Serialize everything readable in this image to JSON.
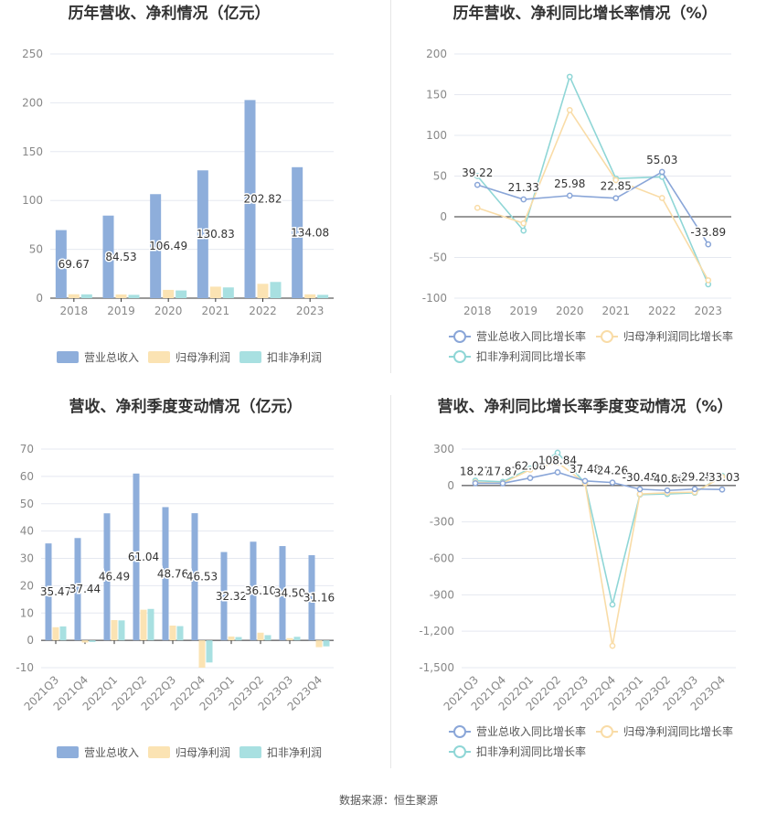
{
  "footer": {
    "source": "数据来源：恒生聚源"
  },
  "colors": {
    "revenue": "#8eaedb",
    "net_profit": "#fbe3b3",
    "deducted_profit": "#a8e0e1",
    "revenue_line": "#8aa6d8",
    "net_line": "#f9dca7",
    "deducted_line": "#8fd6d6",
    "grid": "#e5e8f0",
    "axis": "#333333"
  },
  "chart_data": [
    {
      "type": "bar",
      "title": "历年营收、净利情况（亿元）",
      "categories": [
        "2018",
        "2019",
        "2020",
        "2021",
        "2022",
        "2023"
      ],
      "ylim": [
        0,
        250
      ],
      "yticks": [
        0,
        50,
        100,
        150,
        200,
        250
      ],
      "yticklabels": [
        "0",
        "50",
        "100",
        "150",
        "200",
        "250"
      ],
      "grid": true,
      "legend": "bottom",
      "series": [
        {
          "name": "营业总收入",
          "values": [
            69.67,
            84.53,
            106.49,
            130.83,
            202.82,
            134.08
          ],
          "labels": [
            "69.67",
            "84.53",
            "106.49",
            "130.83",
            "202.82",
            "134.08"
          ]
        },
        {
          "name": "归母净利润",
          "values": [
            4.0,
            3.8,
            8.5,
            11.8,
            14.7,
            3.9
          ]
        },
        {
          "name": "扣非净利润",
          "values": [
            3.9,
            3.4,
            7.9,
            11.0,
            16.6,
            3.4
          ]
        }
      ]
    },
    {
      "type": "line",
      "title": "历年营收、净利同比增长率情况（%）",
      "categories": [
        "2018",
        "2019",
        "2020",
        "2021",
        "2022",
        "2023"
      ],
      "ylim": [
        -100,
        200
      ],
      "yticks": [
        -100,
        -50,
        0,
        50,
        100,
        150,
        200
      ],
      "yticklabels": [
        "-100",
        "-50",
        "0",
        "50",
        "100",
        "150",
        "200"
      ],
      "grid": true,
      "legend": "bottom",
      "series": [
        {
          "name": "营业总收入同比增长率",
          "values": [
            39.22,
            21.33,
            25.98,
            22.85,
            55.03,
            -33.89
          ],
          "labels": [
            "39.22",
            "21.33",
            "25.98",
            "22.85",
            "55.03",
            "-33.89"
          ]
        },
        {
          "name": "归母净利润同比增长率",
          "values": [
            11,
            -8,
            131,
            45,
            23,
            -78
          ]
        },
        {
          "name": "扣非净利润同比增长率",
          "values": [
            50,
            -17,
            172,
            47,
            49,
            -83
          ]
        }
      ]
    },
    {
      "type": "bar",
      "title": "营收、净利季度变动情况（亿元）",
      "categories": [
        "2021Q3",
        "2021Q4",
        "2022Q1",
        "2022Q2",
        "2022Q3",
        "2022Q4",
        "2023Q1",
        "2023Q2",
        "2023Q3",
        "2023Q4"
      ],
      "ylim": [
        -10,
        70
      ],
      "yticks": [
        -10,
        0,
        10,
        20,
        30,
        40,
        50,
        60,
        70
      ],
      "yticklabels": [
        "-10",
        "0",
        "10",
        "20",
        "30",
        "40",
        "50",
        "60",
        "70"
      ],
      "grid": true,
      "legend": "bottom",
      "series": [
        {
          "name": "营业总收入",
          "values": [
            35.47,
            37.44,
            46.49,
            61.04,
            48.76,
            46.53,
            32.32,
            36.1,
            34.5,
            31.16
          ],
          "labels": [
            "35.47",
            "37.44",
            "46.49",
            "61.04",
            "48.76",
            "46.53",
            "32.32",
            "36.10",
            "34.50",
            "31.16"
          ]
        },
        {
          "name": "归母净利润",
          "values": [
            4.8,
            -0.8,
            7.4,
            11.2,
            5.4,
            -10.0,
            1.4,
            2.8,
            0.8,
            -2.5
          ]
        },
        {
          "name": "扣非净利润",
          "values": [
            5.1,
            -0.6,
            7.3,
            11.5,
            5.2,
            -8.1,
            1.2,
            1.9,
            1.3,
            -2.2
          ]
        }
      ]
    },
    {
      "type": "line",
      "title": "营收、净利同比增长率季度变动情况（%）",
      "categories": [
        "2021Q3",
        "2021Q4",
        "2022Q1",
        "2022Q2",
        "2022Q3",
        "2022Q4",
        "2023Q1",
        "2023Q2",
        "2023Q3",
        "2023Q4"
      ],
      "ylim": [
        -1500,
        300
      ],
      "yticks": [
        -1500,
        -1200,
        -900,
        -600,
        -300,
        0,
        300
      ],
      "yticklabels": [
        "-1,500",
        "-1,200",
        "-900",
        "-600",
        "-300",
        "0",
        "300"
      ],
      "grid": true,
      "legend": "bottom",
      "series": [
        {
          "name": "营业总收入同比增长率",
          "values": [
            18.27,
            17.87,
            62.08,
            108.84,
            37.48,
            24.26,
            -30.48,
            -40.86,
            -29.25,
            -33.03
          ],
          "labels": [
            "18.27",
            "17.87",
            "62.08",
            "108.84",
            "37.48",
            "24.26",
            "-30.48",
            "-40.86",
            "-29.25",
            "-33.03"
          ]
        },
        {
          "name": "归母净利润同比增长率",
          "values": [
            25,
            20,
            130,
            190,
            20,
            -1320,
            -70,
            -60,
            -55,
            70
          ]
        },
        {
          "name": "扣非净利润同比增长率",
          "values": [
            40,
            30,
            140,
            270,
            20,
            -980,
            -75,
            -70,
            -60,
            80
          ]
        }
      ]
    }
  ]
}
